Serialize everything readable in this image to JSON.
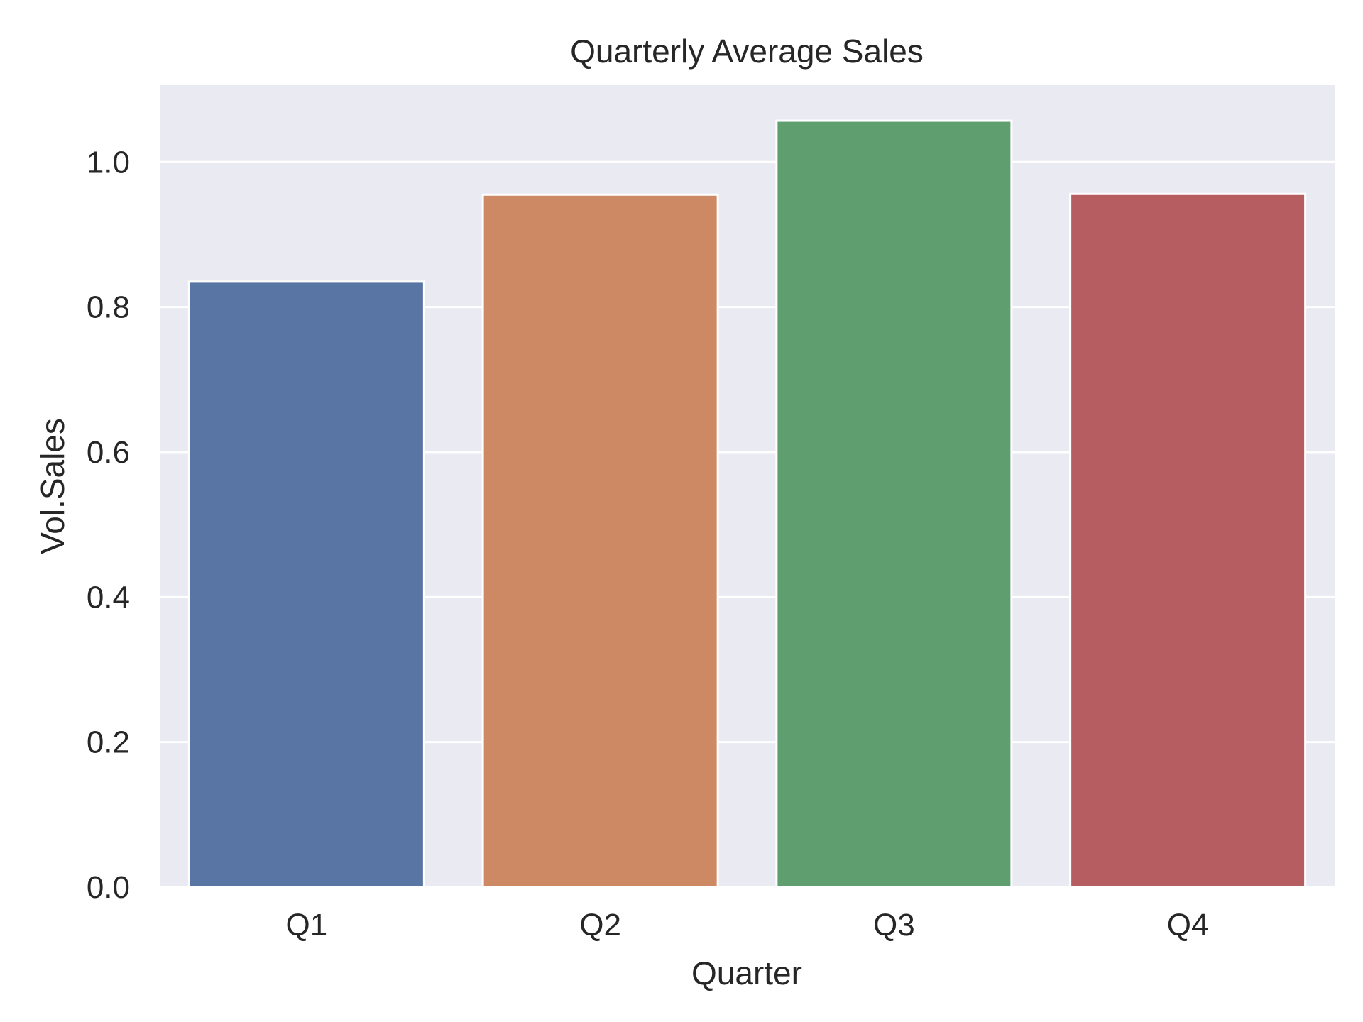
{
  "chart_data": {
    "type": "bar",
    "title": "Quarterly Average Sales",
    "xlabel": "Quarter",
    "ylabel": "Vol.Sales",
    "categories": [
      "Q1",
      "Q2",
      "Q3",
      "Q4"
    ],
    "values": [
      0.835,
      0.955,
      1.057,
      0.956
    ],
    "ylim": [
      0,
      1.106
    ],
    "yticks": [
      0.0,
      0.2,
      0.4,
      0.6,
      0.8,
      1.0
    ],
    "ytick_labels": [
      "0.0",
      "0.2",
      "0.4",
      "0.6",
      "0.8",
      "1.0"
    ],
    "grid": true,
    "legend": "none",
    "colors": [
      "#5975a4",
      "#cc8963",
      "#5f9e6e",
      "#b55d60"
    ],
    "background": "#eaeaf2",
    "grid_color": "#ffffff"
  }
}
